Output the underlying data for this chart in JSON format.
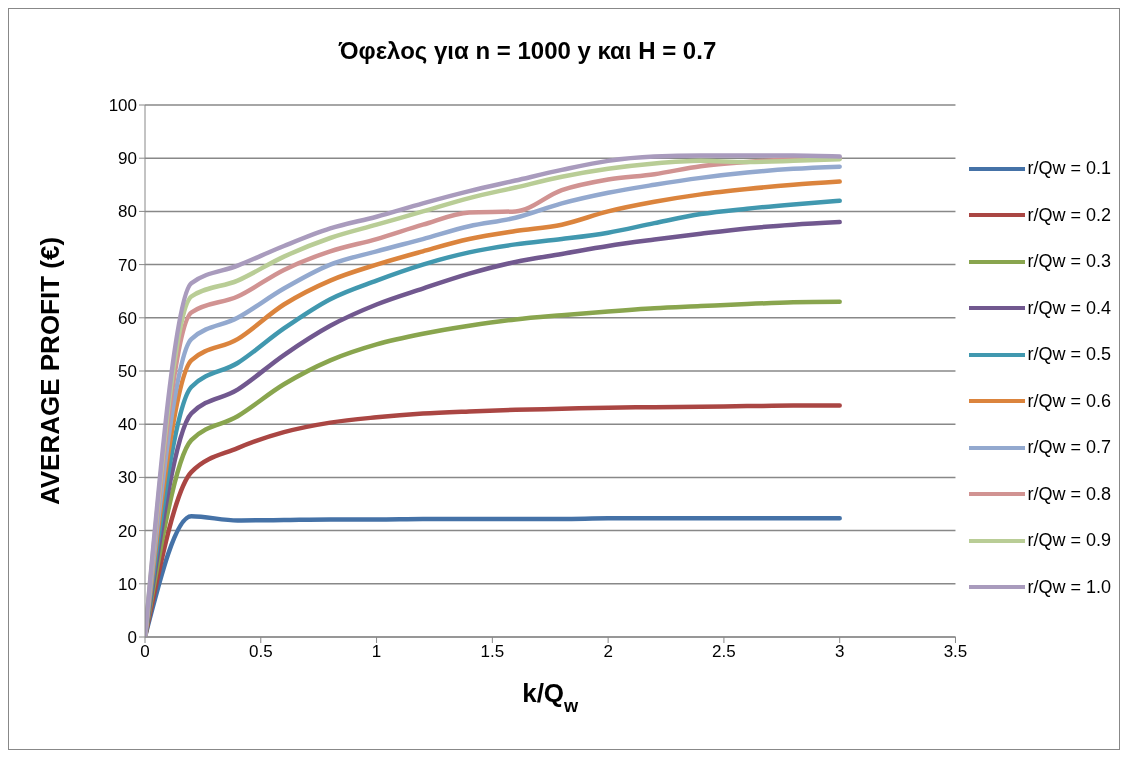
{
  "chart_data": {
    "type": "line",
    "title": "Όφελος για n = 1000 y και H = 0.7",
    "xlabel": "k/Q$_{w}$",
    "ylabel": "AVERAGE PROFIT (€)",
    "x": [
      0,
      0.2,
      0.4,
      0.6,
      0.8,
      1,
      1.2,
      1.4,
      1.6,
      1.8,
      2,
      2.2,
      2.4,
      2.6,
      2.8,
      3
    ],
    "series": [
      {
        "name": "r/Qw = 0.1",
        "color": "#4572a7",
        "values": [
          0,
          22.7,
          21.9,
          22,
          22.1,
          22.1,
          22.2,
          22.2,
          22.2,
          22.2,
          22.3,
          22.3,
          22.3,
          22.3,
          22.3,
          22.3
        ]
      },
      {
        "name": "r/Qw = 0.2",
        "color": "#aa4643",
        "values": [
          0,
          31,
          35.5,
          38.5,
          40.3,
          41.3,
          42,
          42.4,
          42.7,
          42.9,
          43.1,
          43.2,
          43.3,
          43.4,
          43.5,
          43.5
        ]
      },
      {
        "name": "r/Qw = 0.3",
        "color": "#89a54e",
        "values": [
          0,
          37,
          41.5,
          47.5,
          52,
          55,
          57,
          58.5,
          59.7,
          60.5,
          61.2,
          61.8,
          62.2,
          62.6,
          62.9,
          63
        ]
      },
      {
        "name": "r/Qw = 0.4",
        "color": "#71588f",
        "values": [
          0,
          42,
          46.5,
          53,
          58.5,
          62.5,
          65.5,
          68.3,
          70.5,
          72,
          73.5,
          74.7,
          75.8,
          76.8,
          77.5,
          78
        ]
      },
      {
        "name": "r/Qw = 0.5",
        "color": "#4198af",
        "values": [
          0,
          47,
          51.5,
          58,
          63.5,
          67,
          70,
          72.3,
          73.8,
          74.8,
          76,
          77.8,
          79.5,
          80.5,
          81.3,
          82
        ]
      },
      {
        "name": "r/Qw = 0.6",
        "color": "#db843d",
        "values": [
          0,
          52,
          56,
          62.5,
          67,
          70,
          72.5,
          74.8,
          76.3,
          77.5,
          80,
          81.8,
          83.2,
          84.2,
          85,
          85.6
        ]
      },
      {
        "name": "r/Qw = 0.7",
        "color": "#93a9cf",
        "values": [
          0,
          56,
          60,
          65.5,
          70,
          72.5,
          74.8,
          77.2,
          78.8,
          81.5,
          83.5,
          85,
          86.3,
          87.3,
          88,
          88.4
        ]
      },
      {
        "name": "r/Qw = 0.8",
        "color": "#d19392",
        "values": [
          0,
          61,
          64,
          69,
          72.5,
          74.8,
          77.5,
          79.8,
          80,
          84,
          86,
          87,
          88.5,
          89.3,
          89.8,
          90
        ]
      },
      {
        "name": "r/Qw = 0.9",
        "color": "#b9cd96",
        "values": [
          0,
          64,
          67,
          71.5,
          75,
          77.5,
          80,
          82.5,
          84.5,
          86.5,
          88,
          89,
          89.5,
          89.3,
          89.5,
          89.8
        ]
      },
      {
        "name": "r/Qw = 1.0",
        "color": "#a99bbd",
        "values": [
          0,
          66.5,
          69.8,
          73.5,
          76.8,
          79,
          81.5,
          83.8,
          85.8,
          87.8,
          89.5,
          90.3,
          90.5,
          90.5,
          90.5,
          90.3
        ]
      }
    ],
    "xlim": [
      0,
      3.5
    ],
    "xticks": [
      0,
      0.5,
      1,
      1.5,
      2,
      2.5,
      3,
      3.5
    ],
    "ylim": [
      0,
      100
    ],
    "yticks": [
      0,
      10,
      20,
      30,
      40,
      50,
      60,
      70,
      80,
      90,
      100
    ],
    "grid": "y",
    "legend": "right",
    "marker": "none",
    "line_style": "solid"
  }
}
